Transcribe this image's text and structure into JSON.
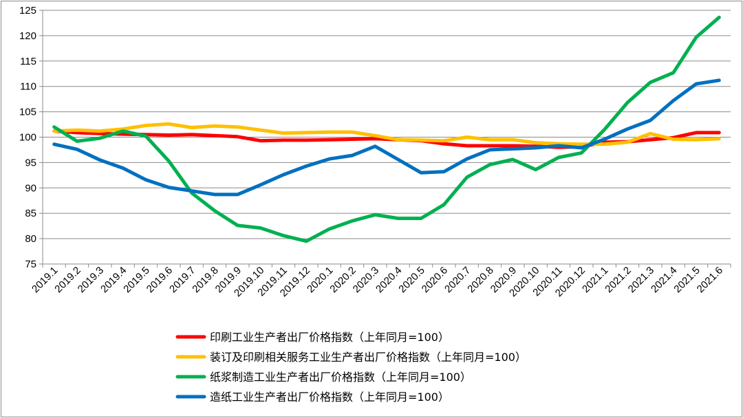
{
  "chart_data": {
    "type": "line",
    "title": "",
    "xlabel": "",
    "ylabel": "",
    "ylim": [
      75,
      125
    ],
    "yticks": [
      75,
      80,
      85,
      90,
      95,
      100,
      105,
      110,
      115,
      120,
      125
    ],
    "grid": true,
    "legend_position": "bottom",
    "categories": [
      "2019.1",
      "2019.2",
      "2019.3",
      "2019.4",
      "2019.5",
      "2019.6",
      "2019.7",
      "2019.8",
      "2019.9",
      "2019.10",
      "2019.11",
      "2019.12",
      "2020.1",
      "2020.2",
      "2020.3",
      "2020.4",
      "2020.5",
      "2020.6",
      "2020.7",
      "2020.8",
      "2020.9",
      "2020.10",
      "2020.11",
      "2020.12",
      "2021.1",
      "2021.2",
      "2021.3",
      "2021.4",
      "2021.5",
      "2021.6"
    ],
    "series": [
      {
        "name": "印刷工业生产者出厂价格指数（上年同月=100）",
        "color": "#ff0000",
        "values": [
          101.2,
          100.9,
          100.7,
          100.6,
          100.5,
          100.4,
          100.5,
          100.3,
          100.1,
          99.3,
          99.4,
          99.4,
          99.5,
          99.6,
          99.7,
          99.5,
          99.3,
          98.7,
          98.3,
          98.3,
          98.3,
          98.2,
          98.0,
          98.1,
          99.0,
          99.1,
          99.5,
          99.9,
          100.9,
          100.9
        ]
      },
      {
        "name": "装订及印刷相关服务工业生产者出厂价格指数（上年同月=100）",
        "color": "#ffc000",
        "values": [
          101.2,
          101.4,
          101.2,
          101.6,
          102.3,
          102.6,
          101.9,
          102.2,
          102.0,
          101.4,
          100.8,
          100.9,
          101.0,
          101.0,
          100.3,
          99.5,
          99.4,
          99.3,
          100.0,
          99.5,
          99.5,
          98.9,
          98.7,
          98.6,
          98.6,
          99.0,
          100.7,
          99.6,
          99.5,
          99.7
        ]
      },
      {
        "name": "纸浆制造工业生产者出厂价格指数（上年同月=100）",
        "color": "#00b050",
        "values": [
          102.0,
          99.2,
          99.8,
          101.2,
          100.2,
          95.3,
          89.0,
          85.5,
          82.6,
          82.1,
          80.6,
          79.5,
          81.9,
          83.5,
          84.7,
          84.0,
          84.0,
          86.7,
          92.1,
          94.6,
          95.6,
          93.6,
          96.0,
          96.9,
          101.5,
          106.8,
          110.8,
          112.7,
          119.7,
          123.6
        ]
      },
      {
        "name": "造纸工业生产者出厂价格指数（上年同月=100）",
        "color": "#0070c0",
        "values": [
          98.6,
          97.6,
          95.5,
          93.9,
          91.6,
          90.1,
          89.4,
          88.7,
          88.7,
          90.6,
          92.6,
          94.3,
          95.7,
          96.4,
          98.2,
          95.6,
          93.0,
          93.2,
          95.7,
          97.5,
          97.7,
          97.9,
          98.3,
          97.9,
          99.6,
          101.6,
          103.3,
          107.2,
          110.5,
          111.2
        ]
      }
    ]
  }
}
